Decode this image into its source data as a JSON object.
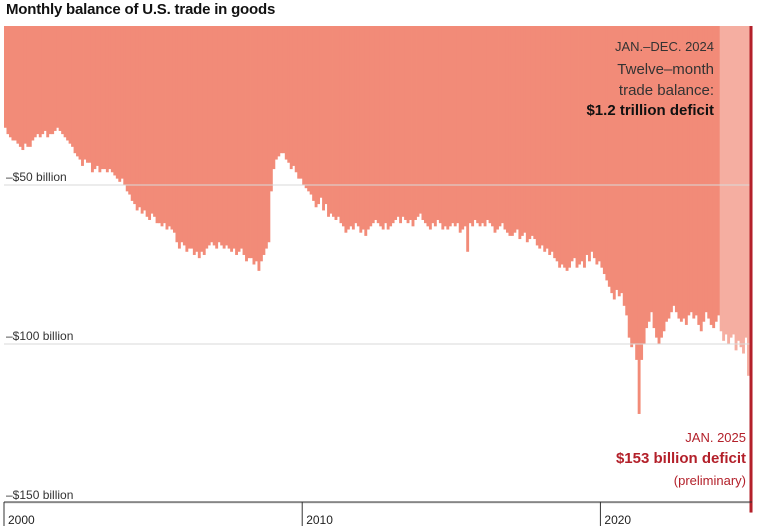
{
  "title": "Monthly balance of U.S. trade in goods",
  "colors": {
    "bar": "#f28b78",
    "bar_recent": "#f5aea1",
    "latest": "#b3202a",
    "grid": "#d9d9d9",
    "axis": "#333333",
    "annotation_text": "#333333",
    "highlight_text": "#b3202a"
  },
  "annotations": {
    "year_range": "JAN.–DEC. 2024",
    "line1": "Twelve–month",
    "line2": "trade balance:",
    "deficit_12mo": "$1.2 trillion deficit",
    "latest_month": "JAN. 2025",
    "latest_value": "$153 billion deficit",
    "latest_note": "(preliminary)"
  },
  "chart_data": {
    "type": "bar",
    "title": "Monthly balance of U.S. trade in goods",
    "xlabel": "",
    "ylabel": "",
    "unit": "billions of dollars",
    "ylim": [
      -155,
      0
    ],
    "y_ticks": [
      {
        "value": -50,
        "label": "–$50 billion"
      },
      {
        "value": -100,
        "label": "–$100 billion"
      },
      {
        "value": -150,
        "label": "–$150 billion"
      }
    ],
    "x_ticks": [
      {
        "date": "2000-01",
        "label": "2000"
      },
      {
        "date": "2010-01",
        "label": "2010"
      },
      {
        "date": "2020-01",
        "label": "2020"
      }
    ],
    "grid": true,
    "start": "2000-01",
    "end": "2025-01",
    "highlight_period": [
      "2024-01",
      "2024-12"
    ],
    "latest": {
      "date": "2025-01",
      "value": -153
    },
    "annual_values": [
      {
        "year": 2000,
        "values": [
          -32,
          -34,
          -35,
          -36,
          -36,
          -37,
          -38,
          -39,
          -37,
          -38,
          -38,
          -36
        ]
      },
      {
        "year": 2001,
        "values": [
          -35,
          -34,
          -35,
          -34,
          -33,
          -35,
          -34,
          -34,
          -33,
          -32,
          -33,
          -34
        ]
      },
      {
        "year": 2002,
        "values": [
          -35,
          -36,
          -37,
          -38,
          -40,
          -41,
          -42,
          -44,
          -42,
          -43,
          -43,
          -46
        ]
      },
      {
        "year": 2003,
        "values": [
          -45,
          -44,
          -46,
          -45,
          -45,
          -46,
          -45,
          -46,
          -47,
          -48,
          -49,
          -48
        ]
      },
      {
        "year": 2004,
        "values": [
          -50,
          -52,
          -53,
          -55,
          -56,
          -58,
          -57,
          -59,
          -58,
          -60,
          -61,
          -59
        ]
      },
      {
        "year": 2005,
        "values": [
          -60,
          -62,
          -62,
          -63,
          -62,
          -64,
          -63,
          -64,
          -65,
          -68,
          -70,
          -68
        ]
      },
      {
        "year": 2006,
        "values": [
          -69,
          -71,
          -70,
          -70,
          -72,
          -71,
          -73,
          -71,
          -72,
          -70,
          -69,
          -68
        ]
      },
      {
        "year": 2007,
        "values": [
          -69,
          -70,
          -68,
          -69,
          -70,
          -69,
          -70,
          -71,
          -70,
          -72,
          -71,
          -70
        ]
      },
      {
        "year": 2008,
        "values": [
          -72,
          -74,
          -73,
          -73,
          -75,
          -74,
          -77,
          -74,
          -72,
          -70,
          -68,
          -52
        ]
      },
      {
        "year": 2009,
        "values": [
          -45,
          -42,
          -41,
          -40,
          -40,
          -42,
          -43,
          -45,
          -44,
          -46,
          -48,
          -48
        ]
      },
      {
        "year": 2010,
        "values": [
          -50,
          -51,
          -52,
          -53,
          -55,
          -57,
          -56,
          -54,
          -58,
          -56,
          -60,
          -59
        ]
      },
      {
        "year": 2011,
        "values": [
          -60,
          -61,
          -60,
          -62,
          -63,
          -65,
          -64,
          -63,
          -64,
          -62,
          -63,
          -65
        ]
      },
      {
        "year": 2012,
        "values": [
          -64,
          -66,
          -64,
          -63,
          -62,
          -61,
          -62,
          -63,
          -64,
          -62,
          -64,
          -63
        ]
      },
      {
        "year": 2013,
        "values": [
          -62,
          -61,
          -60,
          -62,
          -60,
          -61,
          -62,
          -61,
          -63,
          -61,
          -60,
          -59
        ]
      },
      {
        "year": 2014,
        "values": [
          -61,
          -62,
          -63,
          -64,
          -62,
          -63,
          -61,
          -62,
          -64,
          -63,
          -64,
          -63
        ]
      },
      {
        "year": 2015,
        "values": [
          -62,
          -63,
          -62,
          -65,
          -64,
          -63,
          -71,
          -62,
          -63,
          -61,
          -62,
          -63
        ]
      },
      {
        "year": 2016,
        "values": [
          -62,
          -63,
          -61,
          -62,
          -63,
          -65,
          -64,
          -63,
          -62,
          -64,
          -65,
          -66
        ]
      },
      {
        "year": 2017,
        "values": [
          -66,
          -65,
          -64,
          -67,
          -66,
          -65,
          -68,
          -67,
          -66,
          -67,
          -69,
          -70
        ]
      },
      {
        "year": 2018,
        "values": [
          -69,
          -71,
          -70,
          -72,
          -71,
          -73,
          -74,
          -76,
          -75,
          -76,
          -77,
          -76
        ]
      },
      {
        "year": 2019,
        "values": [
          -74,
          -73,
          -76,
          -75,
          -74,
          -76,
          -72,
          -74,
          -71,
          -73,
          -75,
          -74
        ]
      },
      {
        "year": 2020,
        "values": [
          -76,
          -78,
          -80,
          -82,
          -84,
          -86,
          -83,
          -85,
          -84,
          -88,
          -91,
          -98
        ]
      },
      {
        "year": 2021,
        "values": [
          -101,
          -100,
          -105,
          -122,
          -105,
          -100,
          -95,
          -93,
          -90,
          -95,
          -98,
          -100
        ]
      },
      {
        "year": 2022,
        "values": [
          -98,
          -96,
          -93,
          -92,
          -90,
          -88,
          -90,
          -92,
          -93,
          -92,
          -94,
          -91
        ]
      },
      {
        "year": 2023,
        "values": [
          -90,
          -92,
          -91,
          -94,
          -96,
          -93,
          -90,
          -92,
          -94,
          -95,
          -93,
          -91
        ]
      },
      {
        "year": 2024,
        "values": [
          -96,
          -99,
          -97,
          -100,
          -98,
          -97,
          -102,
          -99,
          -101,
          -103,
          -98,
          -110
        ]
      },
      {
        "year": 2025,
        "values": [
          -153
        ]
      }
    ]
  }
}
